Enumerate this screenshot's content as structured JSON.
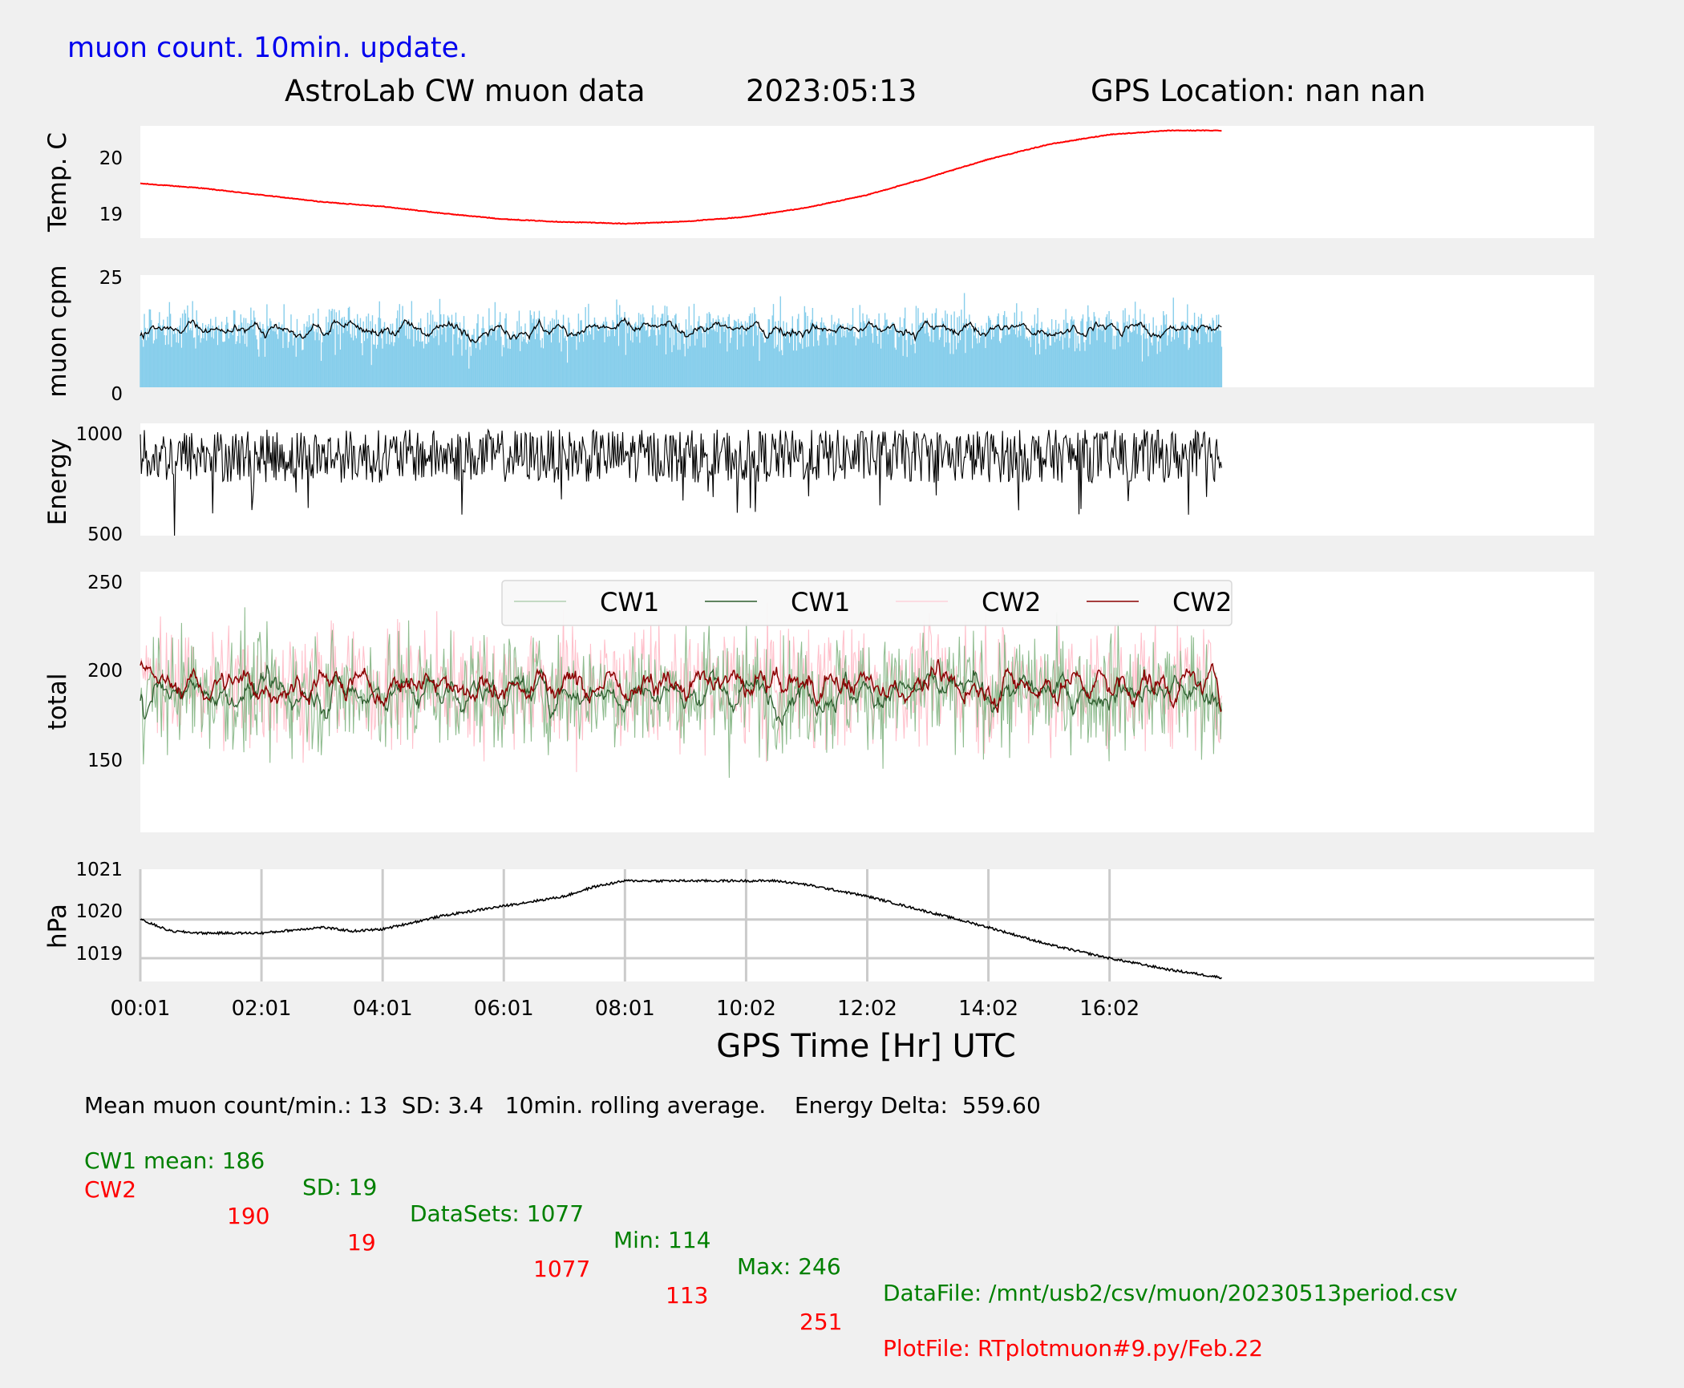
{
  "header": {
    "note": "muon count.  10min. update.",
    "title": "AstroLab CW muon data",
    "date": "2023:05:13",
    "gps": "GPS Location: nan   nan"
  },
  "colors": {
    "temp_line": "#ff0000",
    "muon_bars": "#87ceeb",
    "muon_avg": "#000000",
    "energy_line": "#000000",
    "cw1_raw": "#8fbc8f",
    "cw1_avg": "#2e5e2e",
    "cw2_raw": "#ffc0cb",
    "cw2_avg": "#8b0000",
    "pressure_line": "#000000",
    "note_text": "#0000ee",
    "cw1_text": "#008000",
    "cw2_text": "#ff0000"
  },
  "chart_data": [
    {
      "id": "temperature",
      "type": "line",
      "ylabel": "Temp. C",
      "yticks": [
        "20",
        "19"
      ],
      "ylim": [
        18.55,
        20.5
      ],
      "x_hours": [
        0.0,
        1.0,
        2.0,
        3.0,
        4.0,
        5.0,
        6.0,
        7.0,
        7.5,
        8.0,
        8.5,
        9.0,
        10.0,
        11.0,
        12.0,
        13.0,
        14.0,
        15.0,
        16.0,
        17.0,
        17.8
      ],
      "values": [
        19.5,
        19.42,
        19.3,
        19.18,
        19.1,
        18.98,
        18.88,
        18.83,
        18.82,
        18.8,
        18.82,
        18.84,
        18.92,
        19.08,
        19.3,
        19.6,
        19.92,
        20.18,
        20.35,
        20.42,
        20.42
      ]
    },
    {
      "id": "muon_cpm",
      "type": "bar",
      "ylabel": "muon cpm",
      "yticks": [
        "25",
        "0"
      ],
      "ylim": [
        0,
        25
      ],
      "mean": 13,
      "sd": 3.4,
      "max_shown": 25,
      "rolling_average_label": "10min. rolling average.",
      "x_range_hours": [
        0.0,
        17.85
      ]
    },
    {
      "id": "energy",
      "type": "line",
      "ylabel": "Energy",
      "yticks": [
        "1000",
        "500"
      ],
      "ylim": [
        500,
        1050
      ],
      "typical_range": [
        760,
        1020
      ],
      "min_shown": 500,
      "max_shown": 1030,
      "x_range_hours": [
        0.0,
        17.85
      ]
    },
    {
      "id": "totals",
      "type": "line",
      "ylabel": "total",
      "yticks": [
        "250",
        "200",
        "150"
      ],
      "ylim": [
        105,
        255
      ],
      "legend": [
        "CW1",
        "CW1",
        "CW2",
        "CW2"
      ],
      "legend_position": "top-center",
      "series": [
        {
          "name": "CW1",
          "kind": "raw",
          "mean": 186,
          "sd": 19,
          "min": 114,
          "max": 246
        },
        {
          "name": "CW1",
          "kind": "rolling-average",
          "mean": 186
        },
        {
          "name": "CW2",
          "kind": "raw",
          "mean": 190,
          "sd": 19,
          "min": 113,
          "max": 251
        },
        {
          "name": "CW2",
          "kind": "rolling-average",
          "mean": 190
        }
      ],
      "x_range_hours": [
        0.0,
        17.85
      ]
    },
    {
      "id": "pressure",
      "type": "line",
      "ylabel": "hPa",
      "yticks": [
        "1021",
        "1020",
        "1019"
      ],
      "ylim": [
        1018.4,
        1021.3
      ],
      "grid": true,
      "xlabel": "GPS Time  [Hr] UTC",
      "xticks": [
        "00:01",
        "02:01",
        "04:01",
        "06:01",
        "08:01",
        "10:02",
        "12:02",
        "14:02",
        "16:02"
      ],
      "x_hours": [
        0.0,
        0.5,
        1.0,
        2.0,
        3.0,
        3.5,
        4.0,
        5.0,
        6.0,
        7.0,
        7.5,
        8.0,
        9.0,
        10.0,
        10.5,
        11.0,
        12.0,
        13.0,
        14.0,
        15.0,
        16.0,
        17.0,
        17.85
      ],
      "values": [
        1020.0,
        1019.7,
        1019.65,
        1019.65,
        1019.8,
        1019.7,
        1019.75,
        1020.1,
        1020.35,
        1020.6,
        1020.85,
        1021.0,
        1021.0,
        1021.0,
        1021.0,
        1020.9,
        1020.6,
        1020.2,
        1019.8,
        1019.35,
        1019.0,
        1018.7,
        1018.5
      ]
    }
  ],
  "footer": {
    "line1": "Mean muon count/min.: 13  SD: 3.4   10min. rolling average.    Energy Delta:  559.60",
    "cw1": {
      "label": "CW1 mean: 186",
      "sd": "SD: 19",
      "datasets": "DataSets: 1077",
      "min": "Min: 114",
      "max": "Max: 246",
      "file": "DataFile: /mnt/usb2/csv/muon/20230513period.csv"
    },
    "cw2": {
      "label": "CW2",
      "mean": "190",
      "sd": "19",
      "datasets": "1077",
      "min": "113",
      "max": "251",
      "file": "PlotFile: RTplotmuon#9.py/Feb.22"
    }
  }
}
